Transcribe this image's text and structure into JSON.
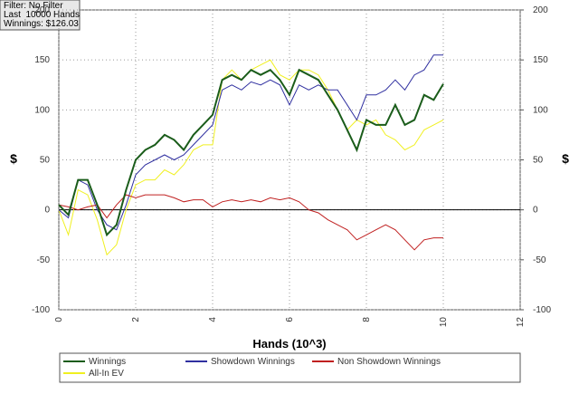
{
  "chart_data": {
    "type": "line",
    "annotations": [
      "Filter: No Filter",
      "Last  10000 Hands",
      "Winnings: $126.03"
    ],
    "xlabel": "Hands (10^3)",
    "ylabel": "$",
    "y2label": "$",
    "x": [
      0,
      0.25,
      0.5,
      0.75,
      1,
      1.25,
      1.5,
      1.75,
      2,
      2.25,
      2.5,
      2.75,
      3,
      3.25,
      3.5,
      3.75,
      4,
      4.25,
      4.5,
      4.75,
      5,
      5.25,
      5.5,
      5.75,
      6,
      6.25,
      6.5,
      6.75,
      7,
      7.25,
      7.5,
      7.75,
      8,
      8.25,
      8.5,
      8.75,
      9,
      9.25,
      9.5,
      9.75,
      10
    ],
    "xlim": [
      0,
      12
    ],
    "xticks": [
      0,
      2,
      4,
      6,
      8,
      10,
      12
    ],
    "ylim": [
      -100,
      200
    ],
    "yticks": [
      -100,
      -50,
      0,
      50,
      100,
      150,
      200
    ],
    "y2lim": [
      -100,
      200
    ],
    "y2ticks": [
      -100,
      -50,
      0,
      50,
      100,
      150,
      200
    ],
    "grid": true,
    "legend": "bottom",
    "series": [
      {
        "name": "Winnings",
        "color": "#1a5c1a",
        "values": [
          5,
          -5,
          30,
          30,
          5,
          -25,
          -15,
          20,
          50,
          60,
          65,
          75,
          70,
          60,
          75,
          85,
          95,
          130,
          135,
          130,
          140,
          135,
          140,
          130,
          115,
          140,
          135,
          130,
          115,
          100,
          80,
          60,
          90,
          85,
          85,
          105,
          85,
          90,
          115,
          110,
          126
        ]
      },
      {
        "name": "Showdown Winnings",
        "color": "#3030a0",
        "values": [
          0,
          -8,
          30,
          25,
          0,
          -15,
          -20,
          5,
          35,
          45,
          50,
          55,
          50,
          55,
          65,
          75,
          85,
          120,
          125,
          120,
          128,
          125,
          130,
          125,
          105,
          125,
          120,
          125,
          120,
          120,
          105,
          90,
          115,
          115,
          120,
          130,
          120,
          135,
          140,
          155,
          155
        ]
      },
      {
        "name": "Non Showdown Winnings",
        "color": "#c02020",
        "values": [
          5,
          3,
          0,
          3,
          5,
          -8,
          5,
          15,
          12,
          15,
          15,
          15,
          12,
          8,
          10,
          10,
          3,
          8,
          10,
          8,
          10,
          8,
          12,
          10,
          12,
          8,
          0,
          -3,
          -10,
          -15,
          -20,
          -30,
          -25,
          -20,
          -15,
          -20,
          -30,
          -40,
          -30,
          -28,
          -28
        ]
      },
      {
        "name": "All-In EV",
        "color": "#f0f020",
        "values": [
          0,
          -25,
          20,
          15,
          -10,
          -45,
          -35,
          0,
          25,
          30,
          30,
          40,
          35,
          45,
          60,
          65,
          65,
          130,
          140,
          130,
          140,
          145,
          150,
          135,
          130,
          140,
          140,
          135,
          120,
          100,
          80,
          90,
          85,
          90,
          75,
          70,
          60,
          65,
          80,
          85,
          90
        ]
      }
    ]
  }
}
